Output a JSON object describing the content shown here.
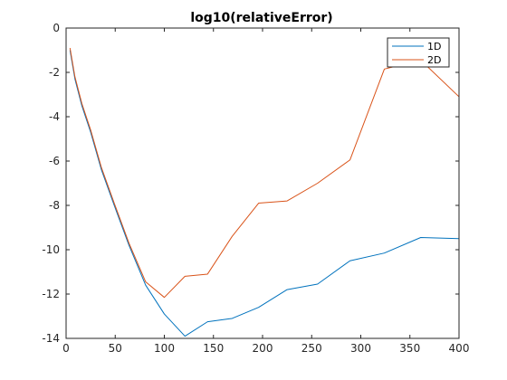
{
  "chart_data": {
    "type": "line",
    "title": "log10(relativeError)",
    "xlabel": "",
    "ylabel": "",
    "xlim": [
      0,
      400
    ],
    "ylim": [
      -14,
      0
    ],
    "xticks": [
      0,
      50,
      100,
      150,
      200,
      250,
      300,
      350,
      400
    ],
    "yticks": [
      0,
      -2,
      -4,
      -6,
      -8,
      -10,
      -12,
      -14
    ],
    "grid": false,
    "legend_position": "top-right",
    "series": [
      {
        "name": "1D",
        "color": "#0072BD",
        "x": [
          4,
          9,
          16,
          25,
          36,
          49,
          64,
          81,
          100,
          121,
          144,
          169,
          196,
          225,
          256,
          289,
          324,
          361,
          400
        ],
        "y": [
          -1.0,
          -2.3,
          -3.5,
          -4.7,
          -6.4,
          -8.0,
          -9.8,
          -11.6,
          -12.9,
          -13.9,
          -13.25,
          -13.1,
          -12.6,
          -11.8,
          -11.55,
          -10.5,
          -10.15,
          -9.45,
          -9.5
        ]
      },
      {
        "name": "2D",
        "color": "#D95319",
        "x": [
          4,
          9,
          16,
          25,
          36,
          49,
          64,
          81,
          100,
          121,
          144,
          169,
          196,
          225,
          256,
          289,
          324,
          361,
          400
        ],
        "y": [
          -0.9,
          -2.2,
          -3.4,
          -4.6,
          -6.3,
          -7.9,
          -9.7,
          -11.45,
          -12.15,
          -11.2,
          -11.1,
          -9.4,
          -7.9,
          -7.8,
          -7.0,
          -5.95,
          -1.85,
          -1.45,
          -3.1
        ]
      }
    ]
  }
}
